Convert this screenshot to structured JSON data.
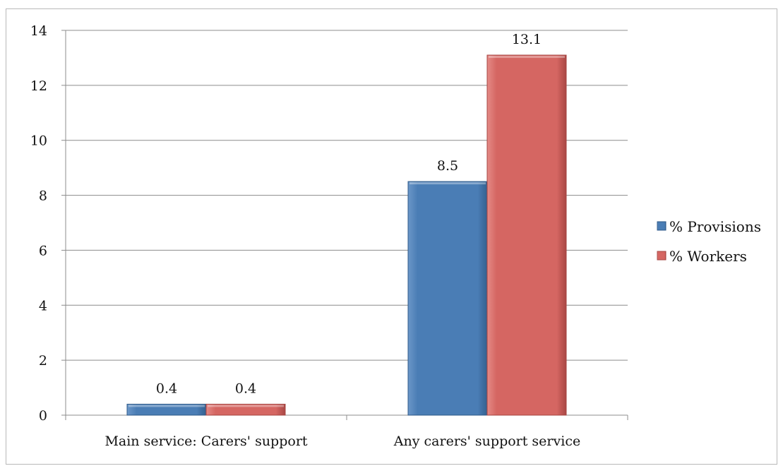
{
  "chart_data": {
    "type": "bar",
    "categories": [
      "Main service: Carers' support",
      "Any carers' support service"
    ],
    "series": [
      {
        "name": "% Provisions",
        "values": [
          0.4,
          8.5
        ],
        "color": "#4a7db5"
      },
      {
        "name": "% Workers",
        "values": [
          0.4,
          13.1
        ],
        "color": "#d56662"
      }
    ],
    "data_labels": [
      [
        "0.4",
        "8.5"
      ],
      [
        "0.4",
        "13.1"
      ]
    ],
    "ylim": [
      0,
      14
    ],
    "yticks": [
      0,
      2,
      4,
      6,
      8,
      10,
      12,
      14
    ],
    "grid": true,
    "legend_position": "right",
    "title": "",
    "xlabel": "",
    "ylabel": ""
  }
}
